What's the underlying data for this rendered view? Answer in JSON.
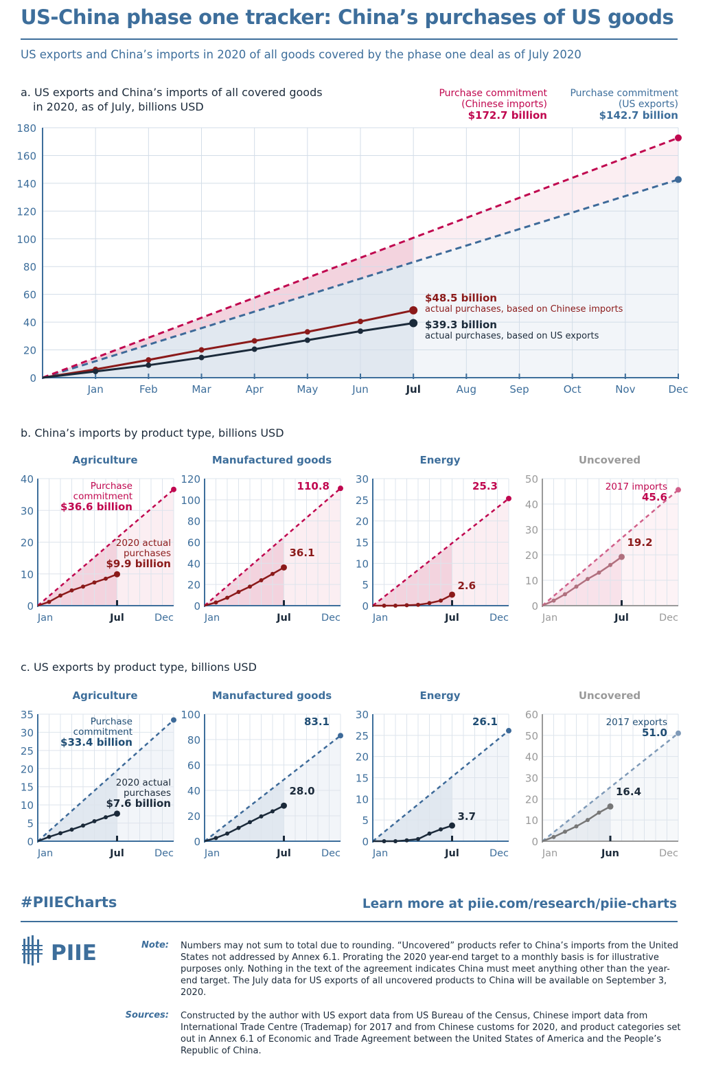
{
  "title": "US-China phase one tracker: China’s purchases of US goods",
  "subtitle": "US exports and China’s imports in 2020 of all goods covered by the phase one deal as of July 2020",
  "colors": {
    "brand": "#3d6e9b",
    "pink": "#c0074f",
    "darkred": "#8b1a1a",
    "navy": "#1b2a3a",
    "bluedash": "#3d6a99",
    "gray": "#9a9a9a"
  },
  "section_a": {
    "heading_line1": "a. US exports and China’s imports of all covered goods",
    "heading_line2": "in 2020, as of July, billions USD",
    "legend_cn": {
      "line1": "Purchase commitment",
      "line2": "(Chinese imports)",
      "value": "$172.7 billion"
    },
    "legend_us": {
      "line1": "Purchase commitment",
      "line2": "(US exports)",
      "value": "$142.7 billion"
    },
    "ann_cn": {
      "value": "$48.5 billion",
      "text": "actual purchases, based on Chinese imports"
    },
    "ann_us": {
      "value": "$39.3 billion",
      "text": "actual purchases, based on US exports"
    }
  },
  "section_b_heading": "b. China’s imports by product type, billions USD",
  "section_c_heading": "c. US exports by product type, billions USD",
  "chart_data": [
    {
      "id": "main",
      "type": "line",
      "title": "US exports and China’s imports of all covered goods in 2020, as of July, billions USD",
      "x_labels": [
        "Jan",
        "Feb",
        "Mar",
        "Apr",
        "May",
        "Jun",
        "Jul",
        "Aug",
        "Sep",
        "Oct",
        "Nov",
        "Dec"
      ],
      "bold_label": "Jul",
      "ylim": [
        0,
        180
      ],
      "yticks": [
        0,
        20,
        40,
        60,
        80,
        100,
        120,
        140,
        160,
        180
      ],
      "series": [
        {
          "name": "Purchase commitment (Chinese imports)",
          "style": "dashed",
          "color": "#c0074f",
          "end": 172.7
        },
        {
          "name": "Purchase commitment (US exports)",
          "style": "dashed",
          "color": "#3d6a99",
          "end": 142.7
        },
        {
          "name": "Actual purchases, based on Chinese imports",
          "style": "solid",
          "color": "#8b1a1a",
          "values": [
            0,
            6.0,
            12.8,
            20.0,
            26.5,
            33.0,
            40.5,
            48.5
          ]
        },
        {
          "name": "Actual purchases, based on US exports",
          "style": "solid",
          "color": "#1b2a3a",
          "values": [
            0,
            4.5,
            9.0,
            14.5,
            20.5,
            27.0,
            33.5,
            39.3
          ]
        }
      ]
    },
    {
      "id": "b-ag",
      "group": "b",
      "type": "line",
      "title": "Agriculture",
      "ylim": [
        0,
        40
      ],
      "yticks": [
        0,
        10,
        20,
        30,
        40
      ],
      "x_labels": [
        "Jan",
        "Jul",
        "Dec"
      ],
      "bold_label": "Jul",
      "commitment": 36.6,
      "actual": [
        0,
        1.2,
        3.2,
        4.8,
        6.0,
        7.3,
        8.5,
        9.9
      ],
      "theme": "pink",
      "ann_top": {
        "l1": "Purchase",
        "l2": "commitment",
        "v": "$36.6 billion"
      },
      "ann_act": {
        "l1": "2020 actual",
        "l2": "purchases",
        "v": "$9.9 billion"
      }
    },
    {
      "id": "b-mfg",
      "group": "b",
      "type": "line",
      "title": "Manufactured goods",
      "ylim": [
        0,
        120
      ],
      "yticks": [
        0,
        20,
        40,
        60,
        80,
        100,
        120
      ],
      "x_labels": [
        "Jan",
        "Jul",
        "Dec"
      ],
      "bold_label": "Jul",
      "commitment": 110.8,
      "actual": [
        0,
        3.0,
        7.5,
        13.0,
        18.0,
        24.0,
        30.0,
        36.1
      ],
      "theme": "pink",
      "ann_top": {
        "v": "110.8"
      },
      "ann_act": {
        "v": "36.1"
      }
    },
    {
      "id": "b-energy",
      "group": "b",
      "type": "line",
      "title": "Energy",
      "ylim": [
        0,
        30
      ],
      "yticks": [
        0,
        5,
        10,
        15,
        20,
        25,
        30
      ],
      "x_labels": [
        "Jan",
        "Jul",
        "Dec"
      ],
      "bold_label": "Jul",
      "commitment": 25.3,
      "actual": [
        0,
        0,
        0,
        0.1,
        0.2,
        0.6,
        1.2,
        2.6
      ],
      "theme": "pink",
      "ann_top": {
        "v": "25.3"
      },
      "ann_act": {
        "v": "2.6"
      }
    },
    {
      "id": "b-uncovered",
      "group": "b",
      "type": "line",
      "title": "Uncovered",
      "ylim": [
        0,
        50
      ],
      "yticks": [
        0,
        10,
        20,
        30,
        40,
        50
      ],
      "x_labels": [
        "Jan",
        "Jul",
        "Dec"
      ],
      "bold_label": "Jul",
      "commitment": 45.6,
      "actual": [
        0,
        2.0,
        4.5,
        7.5,
        10.5,
        13.0,
        16.0,
        19.2
      ],
      "theme": "pink-muted",
      "ann_top": {
        "l1": "2017 imports",
        "v": "45.6"
      },
      "ann_act": {
        "v": "19.2"
      }
    },
    {
      "id": "c-ag",
      "group": "c",
      "type": "line",
      "title": "Agriculture",
      "ylim": [
        0,
        35
      ],
      "yticks": [
        0,
        5,
        10,
        15,
        20,
        25,
        30,
        35
      ],
      "x_labels": [
        "Jan",
        "Jul",
        "Dec"
      ],
      "bold_label": "Jul",
      "commitment": 33.4,
      "actual": [
        0,
        1.2,
        2.2,
        3.2,
        4.3,
        5.5,
        6.6,
        7.6
      ],
      "theme": "blue",
      "ann_top": {
        "l1": "Purchase",
        "l2": "commitment",
        "v": "$33.4 billion"
      },
      "ann_act": {
        "l1": "2020 actual",
        "l2": "purchases",
        "v": "$7.6 billion"
      }
    },
    {
      "id": "c-mfg",
      "group": "c",
      "type": "line",
      "title": "Manufactured goods",
      "ylim": [
        0,
        100
      ],
      "yticks": [
        0,
        20,
        40,
        60,
        80,
        100
      ],
      "x_labels": [
        "Jan",
        "Jul",
        "Dec"
      ],
      "bold_label": "Jul",
      "commitment": 83.1,
      "actual": [
        0,
        2.5,
        6.0,
        10.5,
        15.0,
        19.5,
        23.5,
        28.0
      ],
      "theme": "blue",
      "ann_top": {
        "v": "83.1"
      },
      "ann_act": {
        "v": "28.0"
      }
    },
    {
      "id": "c-energy",
      "group": "c",
      "type": "line",
      "title": "Energy",
      "ylim": [
        0,
        30
      ],
      "yticks": [
        0,
        5,
        10,
        15,
        20,
        25,
        30
      ],
      "x_labels": [
        "Jan",
        "Jul",
        "Dec"
      ],
      "bold_label": "Jul",
      "commitment": 26.1,
      "actual": [
        0,
        0,
        0,
        0.2,
        0.5,
        1.8,
        2.8,
        3.7
      ],
      "theme": "blue",
      "ann_top": {
        "v": "26.1"
      },
      "ann_act": {
        "v": "3.7"
      }
    },
    {
      "id": "c-uncovered",
      "group": "c",
      "type": "line",
      "title": "Uncovered",
      "ylim": [
        0,
        60
      ],
      "yticks": [
        0,
        10,
        20,
        30,
        40,
        50,
        60
      ],
      "x_labels": [
        "Jan",
        "Jun",
        "Dec"
      ],
      "bold_label": "Jun",
      "commitment": 51.0,
      "actual": [
        0,
        2.0,
        4.5,
        7.0,
        10.0,
        13.5,
        16.4
      ],
      "theme": "gray",
      "ann_top": {
        "l1": "2017 exports",
        "v": "51.0"
      },
      "ann_act": {
        "v": "16.4"
      }
    }
  ],
  "footer": {
    "hashtag": "#PIIECharts",
    "link": "Learn more at piie.com/research/piie-charts",
    "logo": "PIIE",
    "note_label": "Note:",
    "note": "Numbers may not sum to total due to rounding. “Uncovered” products refer to China’s imports from the United States not addressed by Annex 6.1. Prorating the 2020 year-end target to a monthly basis is for illustrative purposes only. Nothing in the text of the agreement indicates China must meet anything other than the year-end target. The July data for US exports of all uncovered products to China will be available on September 3, 2020.",
    "sources_label": "Sources:",
    "sources": "Constructed by the author with US export data from US Bureau of the Census, Chinese import data from International Trade Centre (Trademap) for 2017 and from Chinese customs for 2020, and product categories set out in Annex 6.1 of Economic and Trade Agreement between the United States of America and the People’s Republic of China."
  }
}
